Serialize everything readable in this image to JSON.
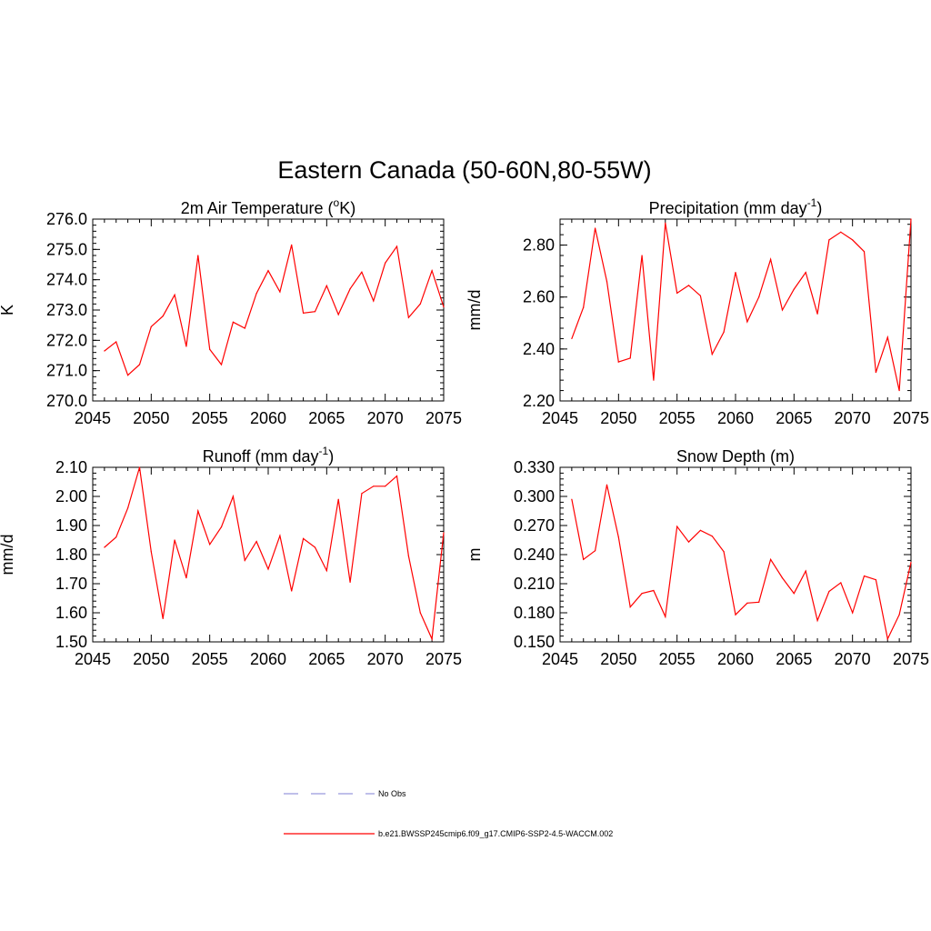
{
  "figure_title": "Eastern Canada (50-60N,80-55W)",
  "legend": [
    {
      "label": "No Obs",
      "color": "#9999dd",
      "dash": true
    },
    {
      "label": "b.e21.BWSSP245cmip6.f09_g17.CMIP6-SSP2-4.5-WACCM.002",
      "color": "#ff0000",
      "dash": false
    }
  ],
  "chart_data": [
    {
      "type": "line",
      "title": "2m Air Temperature (oK)",
      "title_parts": {
        "pre": "2m Air Temperature (",
        "sup": "o",
        "post": "K)"
      },
      "ylabel": "K",
      "xlim": [
        2045,
        2075
      ],
      "ylim": [
        270.0,
        276.0
      ],
      "x_ticks": [
        2045,
        2050,
        2055,
        2060,
        2065,
        2070,
        2075
      ],
      "y_ticks": [
        "270.0",
        "271.0",
        "272.0",
        "273.0",
        "274.0",
        "275.0",
        "276.0"
      ],
      "color": "#ff0000",
      "x": [
        2046,
        2047,
        2048,
        2049,
        2050,
        2051,
        2052,
        2053,
        2054,
        2055,
        2056,
        2057,
        2058,
        2059,
        2060,
        2061,
        2062,
        2063,
        2064,
        2065,
        2066,
        2067,
        2068,
        2069,
        2070,
        2071,
        2072,
        2073,
        2074,
        2075
      ],
      "y": [
        271.65,
        271.95,
        270.85,
        271.2,
        272.45,
        272.8,
        273.5,
        271.8,
        274.8,
        271.7,
        271.2,
        272.6,
        272.4,
        273.55,
        274.3,
        273.6,
        275.15,
        272.9,
        272.95,
        273.8,
        272.85,
        273.7,
        274.25,
        273.3,
        274.55,
        275.1,
        272.75,
        273.2,
        274.3,
        273.1
      ]
    },
    {
      "type": "line",
      "title": "Precipitation (mm day-1)",
      "title_parts": {
        "pre": "Precipitation (mm day",
        "sup": "-1",
        "post": ")"
      },
      "ylabel": "mm/d",
      "xlim": [
        2045,
        2075
      ],
      "ylim": [
        2.2,
        2.9
      ],
      "x_ticks": [
        2045,
        2050,
        2055,
        2060,
        2065,
        2070,
        2075
      ],
      "y_ticks": [
        "2.20",
        "2.40",
        "2.60",
        "2.80"
      ],
      "color": "#ff0000",
      "x": [
        2046,
        2047,
        2048,
        2049,
        2050,
        2051,
        2052,
        2053,
        2054,
        2055,
        2056,
        2057,
        2058,
        2059,
        2060,
        2061,
        2062,
        2063,
        2064,
        2065,
        2066,
        2067,
        2068,
        2069,
        2070,
        2071,
        2072,
        2073,
        2074,
        2075
      ],
      "y": [
        2.44,
        2.56,
        2.865,
        2.66,
        2.35,
        2.365,
        2.76,
        2.28,
        2.885,
        2.615,
        2.645,
        2.605,
        2.38,
        2.465,
        2.695,
        2.505,
        2.6,
        2.745,
        2.55,
        2.63,
        2.695,
        2.535,
        2.82,
        2.85,
        2.82,
        2.775,
        2.31,
        2.445,
        2.24,
        2.9
      ]
    },
    {
      "type": "line",
      "title": "Runoff (mm day-1)",
      "title_parts": {
        "pre": "Runoff (mm day",
        "sup": "-1",
        "post": ")"
      },
      "ylabel": "mm/d",
      "xlim": [
        2045,
        2075
      ],
      "ylim": [
        1.5,
        2.1
      ],
      "x_ticks": [
        2045,
        2050,
        2055,
        2060,
        2065,
        2070,
        2075
      ],
      "y_ticks": [
        "1.50",
        "1.60",
        "1.70",
        "1.80",
        "1.90",
        "2.00",
        "2.10"
      ],
      "color": "#ff0000",
      "x": [
        2046,
        2047,
        2048,
        2049,
        2050,
        2051,
        2052,
        2053,
        2054,
        2055,
        2056,
        2057,
        2058,
        2059,
        2060,
        2061,
        2062,
        2063,
        2064,
        2065,
        2066,
        2067,
        2068,
        2069,
        2070,
        2071,
        2072,
        2073,
        2074,
        2075
      ],
      "y": [
        1.825,
        1.86,
        1.96,
        2.1,
        1.81,
        1.58,
        1.85,
        1.72,
        1.95,
        1.835,
        1.895,
        2.0,
        1.78,
        1.845,
        1.75,
        1.865,
        1.675,
        1.855,
        1.825,
        1.745,
        1.99,
        1.705,
        2.01,
        2.035,
        2.035,
        2.07,
        1.795,
        1.6,
        1.51,
        1.875
      ]
    },
    {
      "type": "line",
      "title": "Snow Depth (m)",
      "title_parts": {
        "pre": "Snow Depth (m)",
        "sup": "",
        "post": ""
      },
      "ylabel": "m",
      "xlim": [
        2045,
        2075
      ],
      "ylim": [
        0.15,
        0.33
      ],
      "x_ticks": [
        2045,
        2050,
        2055,
        2060,
        2065,
        2070,
        2075
      ],
      "y_ticks": [
        "0.150",
        "0.180",
        "0.210",
        "0.240",
        "0.270",
        "0.300",
        "0.330"
      ],
      "color": "#ff0000",
      "x": [
        2046,
        2047,
        2048,
        2049,
        2050,
        2051,
        2052,
        2053,
        2054,
        2055,
        2056,
        2057,
        2058,
        2059,
        2060,
        2061,
        2062,
        2063,
        2064,
        2065,
        2066,
        2067,
        2068,
        2069,
        2070,
        2071,
        2072,
        2073,
        2074,
        2075
      ],
      "y": [
        0.297,
        0.235,
        0.244,
        0.312,
        0.258,
        0.186,
        0.2,
        0.203,
        0.176,
        0.269,
        0.253,
        0.265,
        0.259,
        0.243,
        0.178,
        0.19,
        0.191,
        0.235,
        0.216,
        0.2,
        0.223,
        0.172,
        0.202,
        0.211,
        0.18,
        0.218,
        0.214,
        0.153,
        0.178,
        0.232
      ]
    }
  ]
}
